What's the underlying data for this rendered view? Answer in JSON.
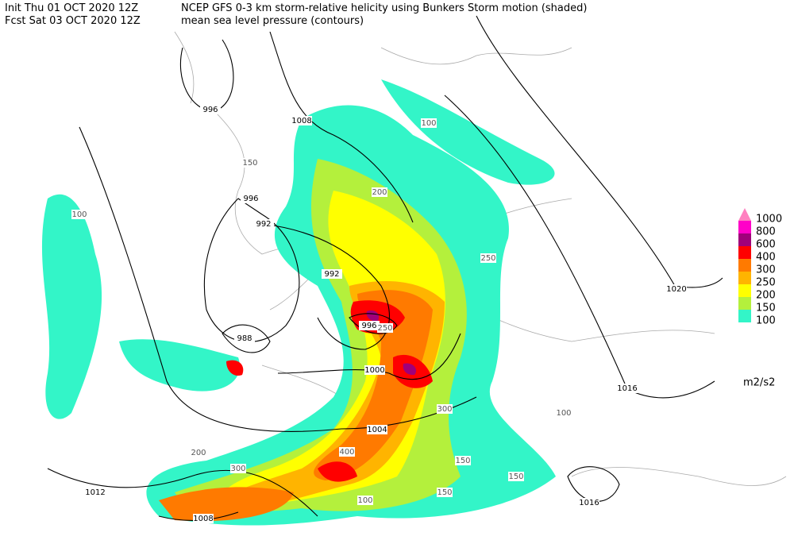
{
  "header": {
    "init": "Init  Thu 01 OCT 2020 12Z",
    "fcst": "Fcst Sat 03 OCT 2020 12Z",
    "title": "NCEP GFS 0-3 km storm-relative helicity using Bunkers Storm motion (shaded)",
    "subtitle": "mean sea level pressure (contours)"
  },
  "legend": {
    "levels": [
      {
        "label": "1000",
        "color": "#ff80c0"
      },
      {
        "label": "800",
        "color": "#ff00c8"
      },
      {
        "label": "600",
        "color": "#a0007a"
      },
      {
        "label": "400",
        "color": "#ff0000"
      },
      {
        "label": "300",
        "color": "#ff7a00"
      },
      {
        "label": "250",
        "color": "#ffb400"
      },
      {
        "label": "200",
        "color": "#ffff00"
      },
      {
        "label": "150",
        "color": "#b4f03c"
      },
      {
        "label": "100",
        "color": "#33f5c8"
      }
    ],
    "units": "m2/s2"
  },
  "isobar_labels": [
    "996",
    "1008",
    "996",
    "992",
    "992",
    "996",
    "988",
    "1000",
    "1004",
    "1012",
    "1008",
    "1016",
    "1016",
    "1020"
  ],
  "shading_labels": [
    "100",
    "150",
    "200",
    "250",
    "300",
    "400",
    "150",
    "100",
    "200",
    "150",
    "100",
    "300",
    "250",
    "100",
    "150"
  ]
}
